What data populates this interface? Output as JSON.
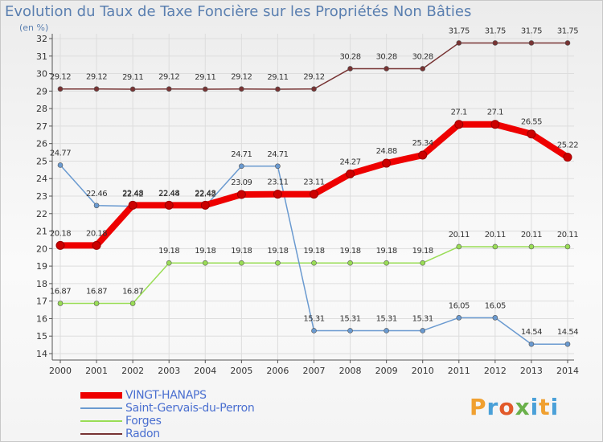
{
  "header": {
    "title": "Evolution du Taux de Taxe Foncière sur les Propriétés Non Bâties",
    "subtitle": "(en %)"
  },
  "logo_text": "Proxiti",
  "chart_data": {
    "type": "line",
    "title": "Evolution du Taux de Taxe Foncière sur les Propriétés Non Bâties",
    "ylabel": "(en %)",
    "xlabel": "",
    "x": [
      "2000",
      "2001",
      "2002",
      "2003",
      "2004",
      "2005",
      "2006",
      "2007",
      "2008",
      "2009",
      "2010",
      "2011",
      "2012",
      "2013",
      "2014"
    ],
    "yticks": [
      14,
      15,
      16,
      17,
      18,
      19,
      20,
      21,
      22,
      23,
      24,
      25,
      26,
      27,
      28,
      29,
      30,
      31,
      32
    ],
    "ylim": [
      14,
      32
    ],
    "grid": true,
    "legend_position": "bottom-left",
    "series": [
      {
        "name": "VINGT-HANAPS",
        "color": "#ee0000",
        "values": [
          20.18,
          20.18,
          22.48,
          22.48,
          22.48,
          23.09,
          23.11,
          23.11,
          24.27,
          24.88,
          25.34,
          27.1,
          27.1,
          26.55,
          25.22
        ],
        "labels": [
          "20.18",
          "20.18",
          "22.48",
          "22.48",
          "22.48",
          "23.09",
          "23.11",
          "23.11",
          "24.27",
          "24.88",
          "25.34",
          "27.1",
          "27.1",
          "26.55",
          "25.22"
        ]
      },
      {
        "name": "Saint-Gervais-du-Perron",
        "color": "#6a9ad0",
        "values": [
          24.77,
          22.46,
          22.42,
          22.44,
          22.42,
          24.71,
          24.71,
          15.31,
          15.31,
          15.31,
          15.31,
          16.05,
          16.05,
          14.54,
          14.54
        ],
        "labels": [
          "24.77",
          "22.46",
          "22.42",
          "22.44",
          "22.42",
          "24.71",
          "24.71",
          "15.31",
          "15.31",
          "15.31",
          "15.31",
          "16.05",
          "16.05",
          "14.54",
          "14.54"
        ]
      },
      {
        "name": "Forges",
        "color": "#99dd55",
        "values": [
          16.87,
          16.87,
          16.87,
          19.18,
          19.18,
          19.18,
          19.18,
          19.18,
          19.18,
          19.18,
          19.18,
          20.11,
          20.11,
          20.11,
          20.11
        ],
        "labels": [
          "16.87",
          "16.87",
          "16.87",
          "19.18",
          "19.18",
          "19.18",
          "19.18",
          "19.18",
          "19.18",
          "19.18",
          "19.18",
          "20.11",
          "20.11",
          "20.11",
          "20.11"
        ]
      },
      {
        "name": "Radon",
        "color": "#773333",
        "values": [
          29.12,
          29.12,
          29.11,
          29.12,
          29.11,
          29.12,
          29.11,
          29.12,
          30.28,
          30.28,
          30.28,
          31.75,
          31.75,
          31.75,
          31.75
        ],
        "labels": [
          "29.12",
          "29.12",
          "29.11",
          "29.12",
          "29.11",
          "29.12",
          "29.11",
          "29.12",
          "30.28",
          "30.28",
          "30.28",
          "31.75",
          "31.75",
          "31.75",
          "31.75"
        ]
      }
    ]
  }
}
